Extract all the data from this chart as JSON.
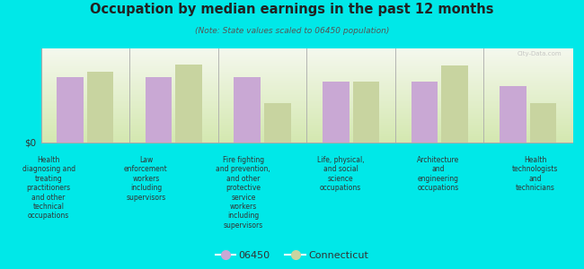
{
  "title": "Occupation by median earnings in the past 12 months",
  "subtitle": "(Note: State values scaled to 06450 population)",
  "background_color": "#00e8e8",
  "plot_bg_top": "#f5f8ee",
  "plot_bg_bottom": "#d4e8b0",
  "bar_color_06450": "#c9a8d4",
  "bar_color_ct": "#c8d4a0",
  "ylabel": "$0",
  "categories": [
    "Health\ndiagnosing and\ntreating\npractitioners\nand other\ntechnical\noccupations",
    "Law\nenforcement\nworkers\nincluding\nsupervisors",
    "Fire fighting\nand prevention,\nand other\nprotective\nservice\nworkers\nincluding\nsupervisors",
    "Life, physical,\nand social\nscience\noccupations",
    "Architecture\nand\nengineering\noccupations",
    "Health\ntechnologists\nand\ntechnicians"
  ],
  "values_06450": [
    0.7,
    0.7,
    0.7,
    0.65,
    0.65,
    0.6
  ],
  "values_ct": [
    0.75,
    0.83,
    0.42,
    0.65,
    0.82,
    0.42
  ],
  "legend_06450": "06450",
  "legend_ct": "Connecticut",
  "watermark": "City-Data.com"
}
